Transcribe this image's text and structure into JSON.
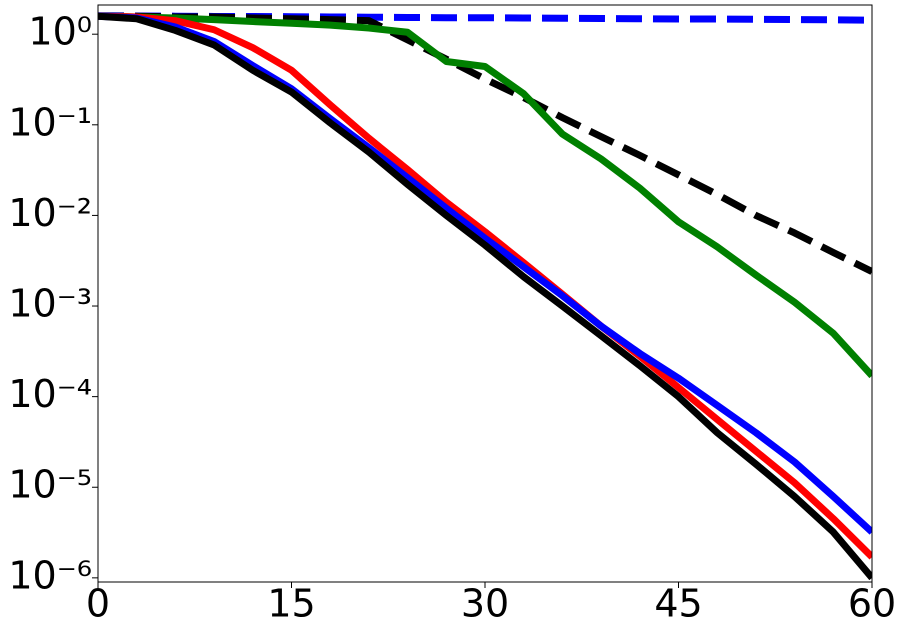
{
  "chart_data": {
    "type": "line",
    "x": [
      0,
      3,
      6,
      9,
      12,
      15,
      18,
      21,
      24,
      27,
      30,
      33,
      36,
      39,
      42,
      45,
      48,
      51,
      54,
      57,
      60
    ],
    "xlim": [
      0,
      60
    ],
    "xticks": [
      0,
      15,
      30,
      45,
      60
    ],
    "ylim": [
      9e-07,
      2.1
    ],
    "yscale": "log",
    "yticks": [
      {
        "value": 1,
        "label": "10⁰"
      },
      {
        "value": 0.1,
        "label": "10⁻¹"
      },
      {
        "value": 0.01,
        "label": "10⁻²"
      },
      {
        "value": 0.001,
        "label": "10⁻³"
      },
      {
        "value": 0.0001,
        "label": "10⁻⁴"
      },
      {
        "value": 1e-05,
        "label": "10⁻⁵"
      },
      {
        "value": 1e-06,
        "label": "10⁻⁶"
      }
    ],
    "grid": false,
    "series": [
      {
        "color": "#0000ff",
        "dashed": true,
        "values": [
          1.6,
          1.59,
          1.58,
          1.57,
          1.57,
          1.56,
          1.55,
          1.54,
          1.53,
          1.52,
          1.52,
          1.51,
          1.5,
          1.49,
          1.48,
          1.47,
          1.47,
          1.46,
          1.45,
          1.44,
          1.43
        ]
      },
      {
        "color": "#000000",
        "dashed": true,
        "values": [
          1.58,
          1.58,
          1.55,
          1.55,
          1.51,
          1.48,
          1.45,
          1.41,
          0.865,
          0.53,
          0.32,
          0.2,
          0.12,
          0.074,
          0.046,
          0.028,
          0.017,
          0.01,
          0.0064,
          0.0039,
          0.0024
        ]
      },
      {
        "color": "#008000",
        "dashed": false,
        "values": [
          1.58,
          1.55,
          1.51,
          1.45,
          1.38,
          1.32,
          1.26,
          1.17,
          1.05,
          0.5,
          0.44,
          0.22,
          0.079,
          0.042,
          0.02,
          0.0085,
          0.0045,
          0.0022,
          0.0011,
          0.0005,
          0.00017
        ]
      },
      {
        "color": "#ff0000",
        "dashed": false,
        "values": [
          1.58,
          1.55,
          1.41,
          1.12,
          0.71,
          0.4,
          0.166,
          0.071,
          0.032,
          0.014,
          0.0066,
          0.003,
          0.00135,
          0.0006,
          0.00028,
          0.000126,
          5.6e-05,
          2.5e-05,
          1.12e-05,
          4.5e-06,
          1.7e-06
        ]
      },
      {
        "color": "#0000ff",
        "dashed": false,
        "values": [
          1.58,
          1.51,
          1.2,
          0.83,
          0.45,
          0.25,
          0.117,
          0.056,
          0.026,
          0.012,
          0.0056,
          0.0027,
          0.0013,
          0.0006,
          0.0003,
          0.00016,
          8e-05,
          4e-05,
          1.9e-05,
          7.9e-06,
          3.2e-06
        ]
      },
      {
        "color": "#000000",
        "dashed": false,
        "values": [
          1.58,
          1.48,
          1.1,
          0.76,
          0.4,
          0.23,
          0.105,
          0.05,
          0.022,
          0.01,
          0.0047,
          0.0021,
          0.001,
          0.00047,
          0.00022,
          0.0001,
          4e-05,
          1.8e-05,
          7.9e-06,
          3.2e-06,
          1e-06
        ]
      }
    ]
  }
}
